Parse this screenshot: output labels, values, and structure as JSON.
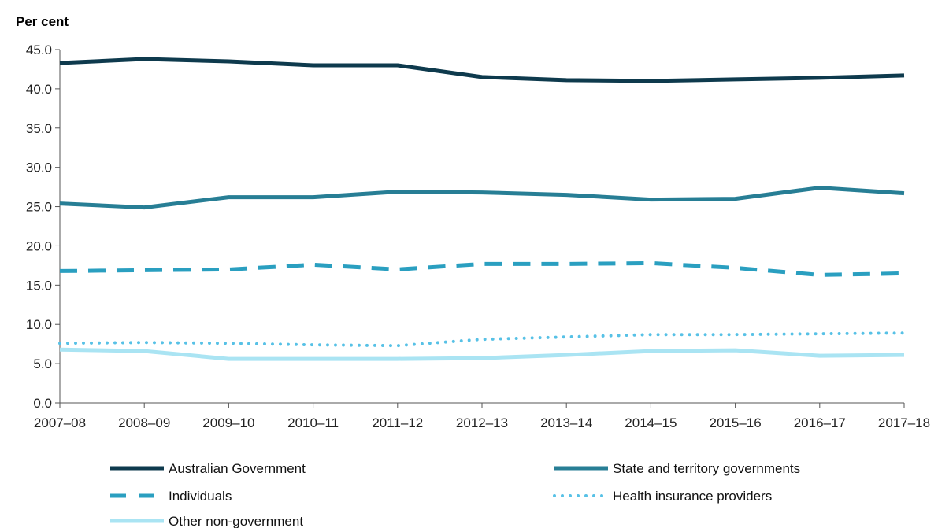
{
  "chart_data": {
    "type": "line",
    "title": "",
    "xlabel": "",
    "ylabel": "Per cent",
    "ylim": [
      0,
      45
    ],
    "yticks": [
      "0.0",
      "5.0",
      "10.0",
      "15.0",
      "20.0",
      "25.0",
      "30.0",
      "35.0",
      "40.0",
      "45.0"
    ],
    "categories": [
      "2007–08",
      "2008–09",
      "2009–10",
      "2010–11",
      "2011–12",
      "2012–13",
      "2013–14",
      "2014–15",
      "2015–16",
      "2016–17",
      "2017–18"
    ],
    "grid": false,
    "legend_position": "bottom",
    "series": [
      {
        "name": "Australian Government",
        "color": "#0e3a4d",
        "style": "solid",
        "values": [
          43.3,
          43.8,
          43.5,
          43.0,
          43.0,
          41.5,
          41.1,
          41.0,
          41.2,
          41.4,
          41.7
        ]
      },
      {
        "name": "State and territory governments",
        "color": "#277e95",
        "style": "solid",
        "values": [
          25.4,
          24.9,
          26.2,
          26.2,
          26.9,
          26.8,
          26.5,
          25.9,
          26.0,
          27.4,
          26.7
        ]
      },
      {
        "name": "Individuals",
        "color": "#2a9fc0",
        "style": "dashed",
        "values": [
          16.8,
          16.9,
          17.0,
          17.6,
          17.0,
          17.7,
          17.7,
          17.8,
          17.2,
          16.3,
          16.5
        ]
      },
      {
        "name": "Health insurance providers",
        "color": "#57c1e6",
        "style": "dotted",
        "values": [
          7.6,
          7.7,
          7.6,
          7.4,
          7.3,
          8.1,
          8.4,
          8.7,
          8.7,
          8.8,
          8.9
        ]
      },
      {
        "name": "Other non-government",
        "color": "#aae4f3",
        "style": "solid",
        "values": [
          6.8,
          6.6,
          5.6,
          5.6,
          5.6,
          5.7,
          6.1,
          6.6,
          6.7,
          6.0,
          6.1
        ]
      }
    ]
  }
}
